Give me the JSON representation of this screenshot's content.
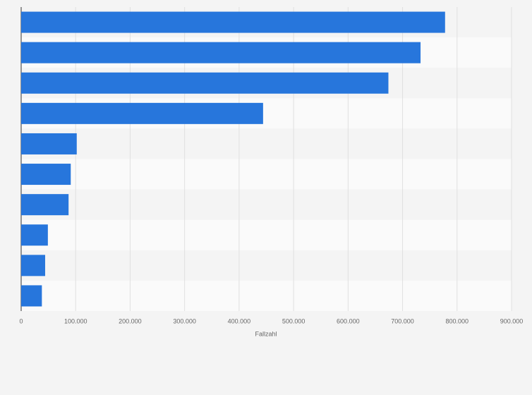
{
  "chart_data": {
    "type": "bar",
    "orientation": "horizontal",
    "x_label": "Fallzahl",
    "categories": [
      null,
      null,
      null,
      null,
      null,
      null,
      null,
      null,
      null,
      null
    ],
    "values": [
      778000,
      733000,
      674000,
      444000,
      102000,
      91000,
      87000,
      49000,
      44000,
      38000
    ],
    "color": "#2776dc",
    "xlim": [
      0,
      900000
    ],
    "xticks": [
      0,
      {
        "value": 100000,
        "label": "100.000"
      },
      {
        "value": 200000,
        "label": "200.000"
      },
      {
        "value": 300000,
        "label": "300.000"
      },
      {
        "value": 400000,
        "label": "400.000"
      },
      {
        "value": 500000,
        "label": "500.000"
      },
      {
        "value": 600000,
        "label": "600.000"
      },
      {
        "value": 700000,
        "label": "700.000"
      },
      {
        "value": 800000,
        "label": "800.000"
      },
      {
        "value": 900000,
        "label": "900.000"
      }
    ],
    "grid": true
  }
}
